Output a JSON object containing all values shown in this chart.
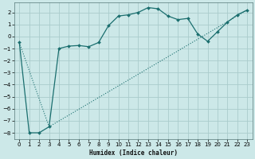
{
  "xlabel": "Humidex (Indice chaleur)",
  "background_color": "#cce8e8",
  "grid_color": "#aacccc",
  "line_color": "#1a6e6e",
  "xlim": [
    -0.5,
    23.5
  ],
  "ylim": [
    -8.5,
    2.8
  ],
  "xticks": [
    0,
    1,
    2,
    3,
    4,
    5,
    6,
    7,
    8,
    9,
    10,
    11,
    12,
    13,
    14,
    15,
    16,
    17,
    18,
    19,
    20,
    21,
    22,
    23
  ],
  "yticks": [
    -8,
    -7,
    -6,
    -5,
    -4,
    -3,
    -2,
    -1,
    0,
    1,
    2
  ],
  "line1_x": [
    0,
    1,
    2,
    3,
    4,
    5,
    6,
    7,
    8,
    9,
    10,
    11,
    12,
    13,
    14,
    15,
    16,
    17,
    18,
    19,
    20,
    21,
    22,
    23
  ],
  "line1_y": [
    -0.5,
    -8.0,
    -8.0,
    -7.5,
    -1.0,
    -0.8,
    -0.75,
    -0.85,
    -0.5,
    0.9,
    1.7,
    1.8,
    2.0,
    2.4,
    2.3,
    1.7,
    1.4,
    1.5,
    0.2,
    -0.4,
    0.4,
    1.2,
    1.8,
    2.2
  ],
  "line2_x": [
    0,
    3,
    23
  ],
  "line2_y": [
    -0.5,
    -7.5,
    2.2
  ]
}
